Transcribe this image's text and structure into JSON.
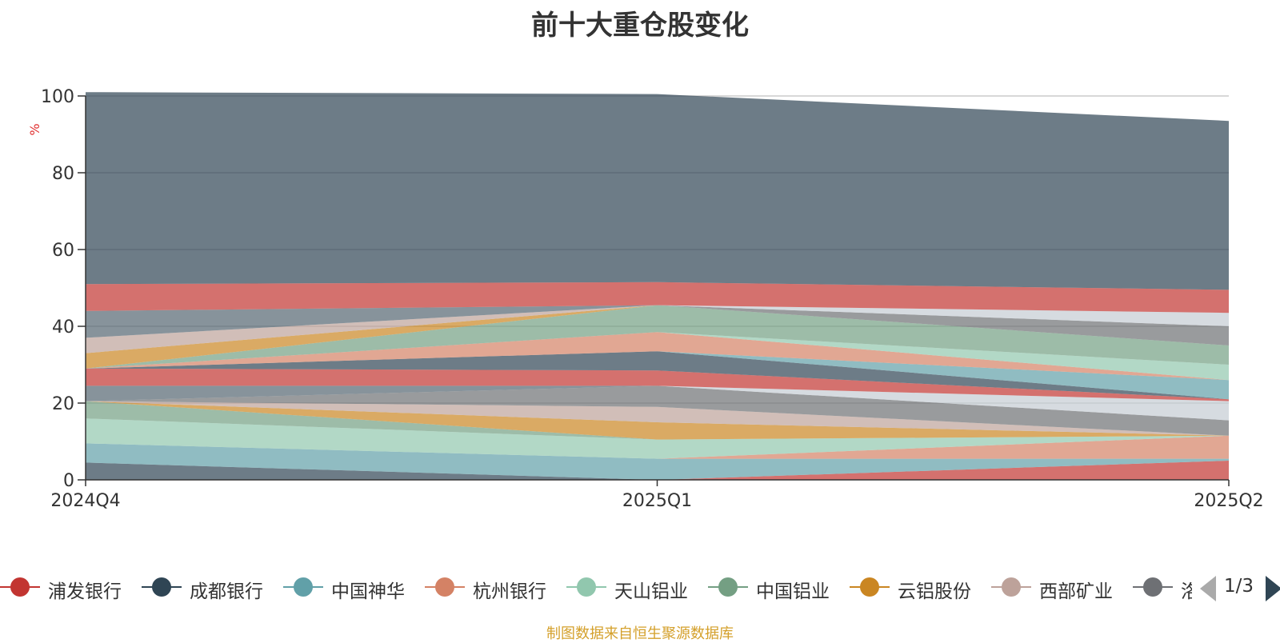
{
  "title": "前十大重仓股变化",
  "source_note": "制图数据来自恒生聚源数据库",
  "pager": {
    "text": "1/3"
  },
  "legend": [
    {
      "label": "浦发银行",
      "color": "#c23531"
    },
    {
      "label": "成都银行",
      "color": "#2f4554"
    },
    {
      "label": "中国神华",
      "color": "#61a0a8"
    },
    {
      "label": "杭州银行",
      "color": "#d48265"
    },
    {
      "label": "天山铝业",
      "color": "#91c7ae"
    },
    {
      "label": "中国铝业",
      "color": "#749f83"
    },
    {
      "label": "云铝股份",
      "color": "#ca8622"
    },
    {
      "label": "西部矿业",
      "color": "#bda29a"
    },
    {
      "label": "洛阳钼业",
      "color": "#6e7074"
    }
  ],
  "chart_data": {
    "type": "area",
    "stacked": true,
    "title": "前十大重仓股变化",
    "ylabel": "%",
    "xlabel": "",
    "x": [
      "2024Q4",
      "2025Q1",
      "2025Q2"
    ],
    "ylim": [
      0,
      100
    ],
    "yticks": [
      0,
      20,
      40,
      60,
      80,
      100
    ],
    "grid": true,
    "series": [
      {
        "color": "#2f4554",
        "opacity": 0.7,
        "values": [
          4.5,
          0,
          0
        ]
      },
      {
        "color": "#c23531",
        "opacity": 0.7,
        "values": [
          0,
          0,
          5
        ]
      },
      {
        "color": "#61a0a8",
        "opacity": 0.7,
        "values": [
          5,
          5.5,
          0.5
        ]
      },
      {
        "color": "#d48265",
        "opacity": 0.7,
        "values": [
          0,
          0,
          6
        ]
      },
      {
        "color": "#91c7ae",
        "opacity": 0.7,
        "values": [
          6.5,
          5,
          0
        ]
      },
      {
        "color": "#749f83",
        "opacity": 0.7,
        "values": [
          4.5,
          0,
          0
        ]
      },
      {
        "color": "#ca8622",
        "opacity": 0.7,
        "values": [
          0,
          4.5,
          0
        ]
      },
      {
        "color": "#bda29a",
        "opacity": 0.7,
        "values": [
          0,
          4,
          0
        ]
      },
      {
        "color": "#6e7074",
        "opacity": 0.7,
        "values": [
          0,
          5.5,
          4
        ]
      },
      {
        "color": "#c4ccd3",
        "opacity": 0.7,
        "values": [
          0,
          0,
          5
        ]
      },
      {
        "color": "#546570",
        "opacity": 0.7,
        "values": [
          4,
          0,
          0
        ]
      },
      {
        "color": "#c23531",
        "opacity": 0.7,
        "values": [
          4.5,
          4,
          0.5
        ]
      },
      {
        "color": "#2f4554",
        "opacity": 0.7,
        "values": [
          0,
          5,
          0
        ]
      },
      {
        "color": "#61a0a8",
        "opacity": 0.7,
        "values": [
          0,
          0,
          5
        ]
      },
      {
        "color": "#d48265",
        "opacity": 0.7,
        "values": [
          0,
          5,
          0
        ]
      },
      {
        "color": "#91c7ae",
        "opacity": 0.7,
        "values": [
          0,
          0,
          4
        ]
      },
      {
        "color": "#749f83",
        "opacity": 0.7,
        "values": [
          0,
          7,
          5
        ]
      },
      {
        "color": "#ca8622",
        "opacity": 0.7,
        "values": [
          4,
          0,
          0
        ]
      },
      {
        "color": "#bda29a",
        "opacity": 0.7,
        "values": [
          4,
          0,
          0
        ]
      },
      {
        "color": "#6e7074",
        "opacity": 0.7,
        "values": [
          0,
          0,
          5
        ]
      },
      {
        "color": "#c4ccd3",
        "opacity": 0.7,
        "values": [
          0,
          0,
          3.5
        ]
      },
      {
        "color": "#546570",
        "opacity": 0.7,
        "values": [
          7,
          0,
          0
        ]
      },
      {
        "color": "#c23531",
        "opacity": 0.7,
        "values": [
          7,
          6,
          6
        ]
      },
      {
        "color": "#2f4554",
        "opacity": 0.7,
        "values": [
          50,
          49,
          44
        ]
      }
    ]
  }
}
